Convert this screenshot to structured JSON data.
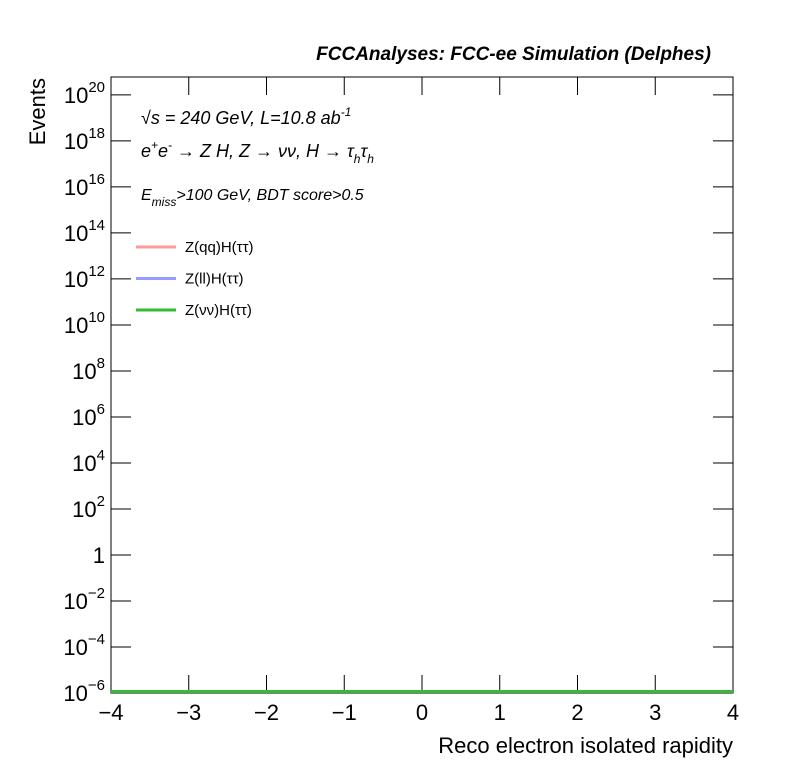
{
  "chart_data": {
    "type": "line",
    "title": "FCCAnalyses: FCC-ee Simulation (Delphes)",
    "annotations": [
      [
        {
          "text": "√s = 240 GeV, L=10.8 ab"
        },
        {
          "text": "-1",
          "sup": true
        }
      ],
      [
        {
          "text": "e"
        },
        {
          "text": "+",
          "sup": true
        },
        {
          "text": "e"
        },
        {
          "text": "-",
          "sup": true
        },
        {
          "text": " → Z H, Z  → νν, H → τ"
        },
        {
          "text": "h",
          "sub": true
        },
        {
          "text": "τ"
        },
        {
          "text": "h",
          "sub": true
        }
      ],
      [
        {
          "text": "E"
        },
        {
          "text": "miss",
          "sub": true
        },
        {
          "text": ">100 GeV, BDT score>0.5"
        }
      ]
    ],
    "xlabel": "Reco electron isolated rapidity",
    "ylabel": "Events",
    "log_y": true,
    "xlim": [
      -4,
      4
    ],
    "ylim": [
      1e-06,
      6e+20
    ],
    "xticks": [
      {
        "value": -4,
        "label": "−4"
      },
      {
        "value": -3,
        "label": "−3"
      },
      {
        "value": -2,
        "label": "−2"
      },
      {
        "value": -1,
        "label": "−1"
      },
      0,
      1,
      2,
      3,
      4
    ],
    "yticks": [
      {
        "value": 1e-06,
        "label": "10",
        "exponent": "−6"
      },
      {
        "value": 0.0001,
        "label": "10",
        "exponent": "−4"
      },
      {
        "value": 0.01,
        "label": "10",
        "exponent": "−2"
      },
      1,
      {
        "value": 100,
        "label": "10",
        "exponent": "2"
      },
      {
        "value": 10000.0,
        "label": "10",
        "exponent": "4"
      },
      {
        "value": 1000000.0,
        "label": "10",
        "exponent": "6"
      },
      {
        "value": 100000000.0,
        "label": "10",
        "exponent": "8"
      },
      {
        "value": 10000000000.0,
        "label": "10",
        "exponent": "10"
      },
      {
        "value": 1000000000000.0,
        "label": "10",
        "exponent": "12"
      },
      {
        "value": 100000000000000.0,
        "label": "10",
        "exponent": "14"
      },
      {
        "value": 1e+16,
        "label": "10",
        "exponent": "16"
      },
      {
        "value": 1e+18,
        "label": "10",
        "exponent": "18"
      },
      {
        "value": 1e+20,
        "label": "10",
        "exponent": "20"
      }
    ],
    "x": [
      -4,
      4
    ],
    "series": [
      {
        "name": "Z(qq)H(ττ)",
        "color": "#ff9999",
        "values": [
          1e-06,
          1e-06
        ]
      },
      {
        "name": "Z(ll)H(ττ)",
        "color": "#9999ff",
        "values": [
          1e-06,
          1e-06
        ]
      },
      {
        "name": "Z(νν)H(ττ)",
        "color": "#33bb33",
        "values": [
          1e-06,
          1e-06
        ]
      }
    ]
  }
}
